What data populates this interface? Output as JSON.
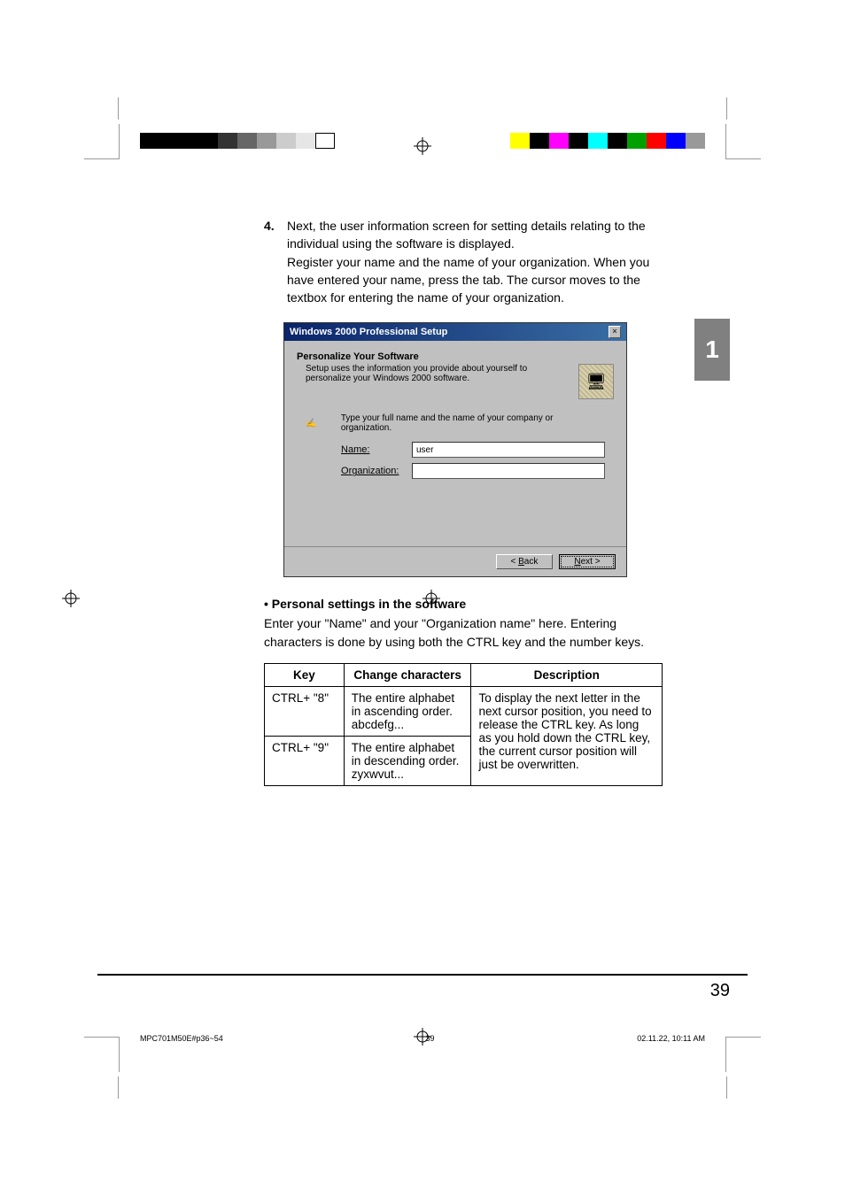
{
  "cropmarks": true,
  "registration_glyph": "⊕",
  "colorbar_left": [
    "#000000",
    "#000000",
    "#000000",
    "#000000",
    "#333333",
    "#666666",
    "#999999",
    "#cccccc",
    "#e6e6e6",
    "#ffffff"
  ],
  "colorbar_right": [
    "#ffff00",
    "#000000",
    "#ff00ff",
    "#000000",
    "#00ffff",
    "#000000",
    "#00a000",
    "#ff0000",
    "#0000ff",
    "#999999"
  ],
  "step": {
    "num": "4.",
    "text1": "Next, the user information screen for setting details relating to the individual using the software is displayed.",
    "text2": "Register your name and the name of your organization. When you have entered your name, press the tab. The cursor moves to the textbox for entering the name of your organization."
  },
  "dialog": {
    "title": "Windows 2000 Professional Setup",
    "heading": "Personalize Your Software",
    "subtitle": "Setup uses the information you provide about yourself to personalize your Windows 2000 software.",
    "instruction": "Type your full name and the name of your company or organization.",
    "name_label": "Name:",
    "name_value": "user",
    "org_label": "Organization:",
    "org_value": "",
    "back": "< Back",
    "next": "Next >"
  },
  "section": {
    "heading": "Personal settings in the software",
    "body": "Enter your \"Name\" and your \"Organization name\" here. Entering characters is done by using both the CTRL key and the number keys."
  },
  "table": {
    "headers": [
      "Key",
      "Change characters",
      "Description"
    ],
    "row1": {
      "key": "CTRL+ \"8\"",
      "change": "The entire alphabet in ascending order. abcdefg..."
    },
    "row2": {
      "key": "CTRL+ \"9\"",
      "change": "The entire alphabet in descending order. zyxwvut..."
    },
    "desc": "To display the next letter in the next cursor position, you need to release the CTRL key. As long as you hold down the CTRL key, the current cursor position will just be overwritten."
  },
  "sidetab": "1",
  "pagenum": "39",
  "imposition": {
    "file": "MPC701M50E#p36~54",
    "page": "39",
    "stamp": "02.11.22, 10:11 AM"
  }
}
